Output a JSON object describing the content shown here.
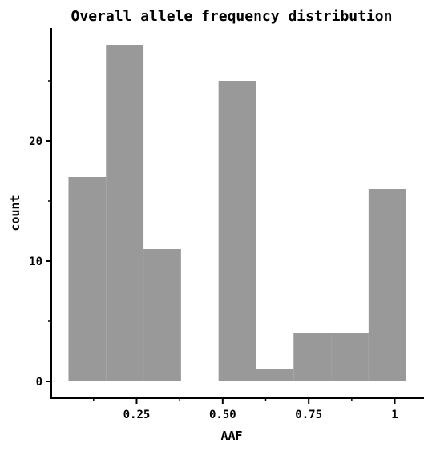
{
  "chart_data": {
    "type": "bar",
    "title": "Overall allele frequency distribution",
    "xlabel": "AAF",
    "ylabel": "count",
    "bin_width": 0.109,
    "bins": [
      {
        "x_start": 0.052,
        "x_end": 0.161,
        "count": 17
      },
      {
        "x_start": 0.161,
        "x_end": 0.27,
        "count": 28
      },
      {
        "x_start": 0.27,
        "x_end": 0.379,
        "count": 11
      },
      {
        "x_start": 0.379,
        "x_end": 0.488,
        "count": 0
      },
      {
        "x_start": 0.488,
        "x_end": 0.597,
        "count": 25
      },
      {
        "x_start": 0.597,
        "x_end": 0.706,
        "count": 1
      },
      {
        "x_start": 0.706,
        "x_end": 0.815,
        "count": 4
      },
      {
        "x_start": 0.815,
        "x_end": 0.924,
        "count": 4
      },
      {
        "x_start": 0.924,
        "x_end": 1.033,
        "count": 16
      }
    ],
    "xlim": [
      0.002,
      1.085
    ],
    "ylim": [
      -1.4,
      29.4
    ],
    "x_ticks": [
      {
        "value": 0.25,
        "label": "0.25"
      },
      {
        "value": 0.5,
        "label": "0.50"
      },
      {
        "value": 0.75,
        "label": "0.75"
      },
      {
        "value": 1.0,
        "label": "1"
      }
    ],
    "x_minor_ticks": [
      0.125,
      0.375,
      0.625,
      0.875
    ],
    "y_ticks": [
      {
        "value": 0,
        "label": "0"
      },
      {
        "value": 10,
        "label": "10"
      },
      {
        "value": 20,
        "label": "20"
      }
    ],
    "y_minor_ticks": [
      5,
      15,
      25
    ],
    "bar_color": "#999999",
    "grid": false,
    "legend": "none"
  }
}
